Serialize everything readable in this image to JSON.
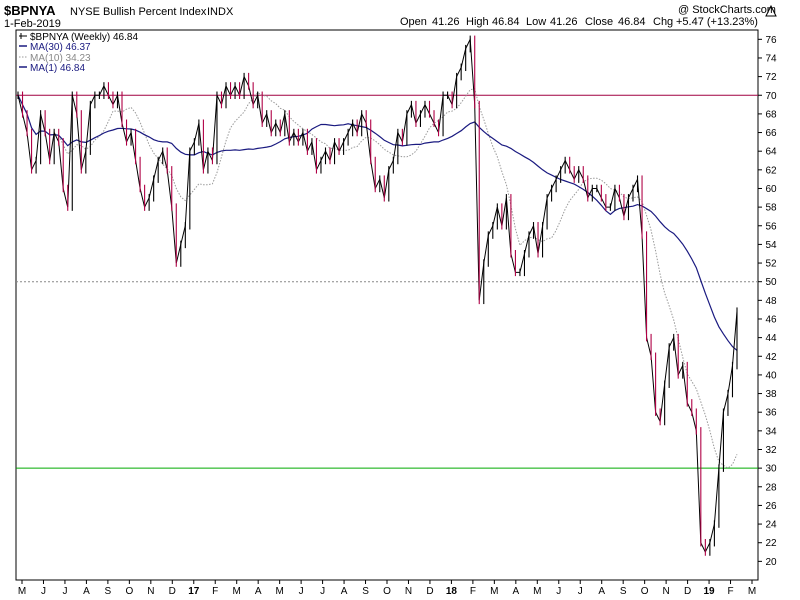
{
  "header": {
    "symbol": "$BPNYA",
    "name": "NYSE Bullish Percent Index",
    "exchange": "INDX",
    "date": "1-Feb-2019",
    "open_label": "Open",
    "open_value": "41.26",
    "high_label": "High",
    "high_value": "46.84",
    "low_label": "Low",
    "low_value": "41.26",
    "close_label": "Close",
    "close_value": "46.84",
    "chg_label": "Chg",
    "chg_value": "+5.47 (+13.23%)",
    "brand": "@ StockCharts.com",
    "brand_icon": "stockcharts-triangle-icon"
  },
  "legend": [
    {
      "text": "$BPNYA (Weekly) 46.84",
      "style": "price",
      "color": "#000000"
    },
    {
      "text": "MA(30) 46.37",
      "style": "solid",
      "color": "#1a1a80"
    },
    {
      "text": "MA(10) 34.23",
      "style": "dotted",
      "color": "#999999"
    },
    {
      "text": "MA(1) 46.84",
      "style": "solid",
      "color": "#1a1a80"
    }
  ],
  "colors": {
    "up": "#000000",
    "down": "#b00045",
    "ma30": "#1a1a80",
    "ma10": "#999999",
    "line70": "#a00040",
    "line30": "#00aa00",
    "grid50": "#888888"
  },
  "chart_data": {
    "type": "line",
    "title": "$BPNYA NYSE Bullish Percent Index INDX",
    "ylim": [
      18,
      77
    ],
    "y_ticks": [
      20,
      22,
      24,
      26,
      28,
      30,
      32,
      34,
      36,
      38,
      40,
      42,
      44,
      46,
      48,
      50,
      52,
      54,
      56,
      58,
      60,
      62,
      64,
      66,
      68,
      70,
      72,
      74,
      76
    ],
    "x_labels": [
      "M",
      "J",
      "J",
      "A",
      "S",
      "O",
      "N",
      "D",
      "17",
      "F",
      "M",
      "A",
      "M",
      "J",
      "J",
      "A",
      "S",
      "O",
      "N",
      "D",
      "18",
      "F",
      "M",
      "A",
      "M",
      "J",
      "J",
      "A",
      "S",
      "O",
      "N",
      "D",
      "19",
      "F",
      "M"
    ],
    "reference_lines": [
      {
        "y": 70,
        "style": "solid",
        "color": "#a00040"
      },
      {
        "y": 50,
        "style": "dotted",
        "color": "#888888"
      },
      {
        "y": 30,
        "style": "solid",
        "color": "#00aa00"
      }
    ],
    "series": [
      {
        "name": "$BPNYA (Weekly)",
        "values": [
          70,
          68,
          66,
          62,
          63,
          68,
          66,
          63,
          66,
          65,
          60,
          58,
          70,
          68,
          62,
          64,
          69,
          70,
          70,
          71,
          70,
          69,
          70,
          67,
          65,
          66,
          63,
          60,
          58,
          59,
          61,
          63,
          64,
          62,
          58,
          52,
          54,
          56,
          64,
          65,
          67,
          62,
          64,
          63,
          70,
          69,
          71,
          70,
          71,
          70,
          72,
          71,
          69,
          70,
          67,
          68,
          66,
          67,
          66,
          68,
          65,
          66,
          65,
          66,
          64,
          65,
          62,
          63,
          64,
          63,
          65,
          64,
          65,
          66,
          67,
          66,
          68,
          67,
          63,
          60,
          61,
          59,
          62,
          63,
          66,
          65,
          68,
          69,
          67,
          68,
          69,
          68,
          67,
          66,
          70,
          70,
          69,
          72,
          73,
          75,
          76,
          69,
          48,
          52,
          55,
          56,
          58,
          56,
          59,
          53,
          51,
          51,
          53,
          55,
          56,
          53,
          56,
          59,
          60,
          61,
          62,
          63,
          62,
          61,
          62,
          61,
          59,
          60,
          60,
          59,
          58,
          58,
          60,
          59,
          57,
          59,
          60,
          61,
          55,
          44,
          42,
          36,
          35,
          39,
          43,
          44,
          40,
          41,
          37,
          36,
          34,
          22,
          21,
          22,
          24,
          30,
          36,
          38,
          41,
          46.84
        ]
      },
      {
        "name": "MA(30)",
        "values": []
      },
      {
        "name": "MA(10)",
        "values": []
      },
      {
        "name": "MA(1)",
        "values": []
      }
    ]
  }
}
